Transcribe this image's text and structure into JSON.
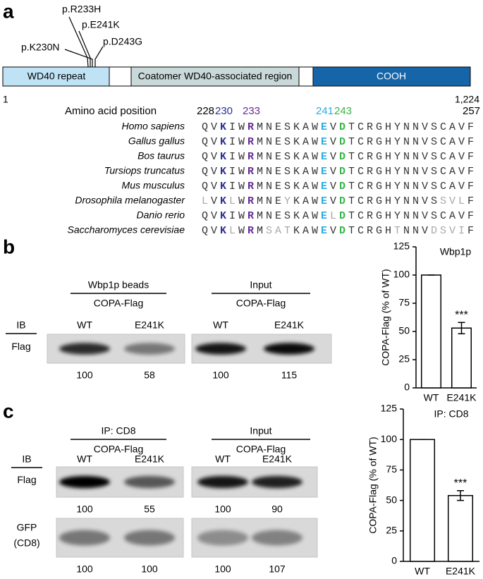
{
  "panel_a": {
    "label": "a",
    "mutations": [
      "p.R233H",
      "p.E241K",
      "p.K230N",
      "p.D243G"
    ],
    "domains": [
      "WD40 repeat",
      "Coatomer WD40-associated region",
      "COOH"
    ],
    "start": "1",
    "end": "1,224",
    "position_title": "Amino acid position",
    "positions": [
      228,
      230,
      233,
      241,
      243,
      257
    ],
    "position_colors": [
      "#000000",
      "#2e3192",
      "#662d91",
      "#29abe2",
      "#39b54a",
      "#000000"
    ],
    "species": [
      {
        "name": "Homo sapiens",
        "sequence": "QVKIWRMNESKAWEVDTCRGHYNNVSCAVF"
      },
      {
        "name": "Gallus gallus",
        "sequence": "QVKIWRMNESKAWEVDTCRGHYNNVSCAVF"
      },
      {
        "name": "Bos taurus",
        "sequence": "QVKIWRMNESKAWEVDTCRGHYNNVSCAVF"
      },
      {
        "name": "Tursiops truncatus",
        "sequence": "QVKIWRMNESKAWEVDTCRGHYNNVSCAVF"
      },
      {
        "name": "Mus musculus",
        "sequence": "QVKIWRMNESKAWEVDTCRGHYNNVSCAVF"
      },
      {
        "name": "Drosophila melanogaster",
        "sequence": "LVKLWRMNEYKAWEVDTCRGHYNNVSSVLF"
      },
      {
        "name": "Danio rerio",
        "sequence": "QVKIWRMNESKAWELDTCRGHYNNVSCAVF"
      },
      {
        "name": "Saccharomyces cerevisiae",
        "sequence": "QVKLWRMSATKAWEVDTCRGHTNNVDSVIF"
      }
    ]
  },
  "panel_b": {
    "label": "b",
    "blot": {
      "left_title": "Wbp1p beads",
      "left_sub": "COPA-Flag",
      "right_title": "Input",
      "right_sub": "COPA-Flag",
      "ib": "IB",
      "lanes": [
        "WT",
        "E241K",
        "WT",
        "E241K"
      ],
      "row": "Flag",
      "quant": [
        100,
        58,
        100,
        115
      ]
    },
    "chart": {
      "type": "bar",
      "title": "Wbp1p",
      "y_label": "COPA-Flag (% of WT)",
      "categories": [
        "WT",
        "E241K"
      ],
      "values": [
        100,
        53
      ],
      "errors": [
        0,
        5
      ],
      "significance": {
        "category": "E241K",
        "label": "***"
      },
      "ylim": [
        0,
        125
      ],
      "yticks": [
        0,
        25,
        50,
        75,
        100,
        125
      ]
    }
  },
  "panel_c": {
    "label": "c",
    "blot": {
      "left_title": "IP: CD8",
      "left_sub": "COPA-Flag",
      "right_title": "Input",
      "right_sub": "COPA-Flag",
      "ib": "IB",
      "lanes": [
        "WT",
        "E241K",
        "WT",
        "E241K"
      ],
      "row": "Flag",
      "quant": [
        100,
        55,
        100,
        90
      ],
      "row2": [
        "GFP",
        "(CD8)"
      ],
      "quant2": [
        100,
        100,
        100,
        107
      ]
    },
    "chart": {
      "type": "bar",
      "title": "IP: CD8",
      "y_label": "COPA-Flag (% of WT)",
      "categories": [
        "WT",
        "E241K"
      ],
      "values": [
        100,
        54
      ],
      "errors": [
        0,
        4
      ],
      "significance": {
        "category": "E241K",
        "label": "***"
      },
      "ylim": [
        0,
        125
      ],
      "yticks": [
        0,
        25,
        50,
        75,
        100,
        125
      ]
    }
  }
}
